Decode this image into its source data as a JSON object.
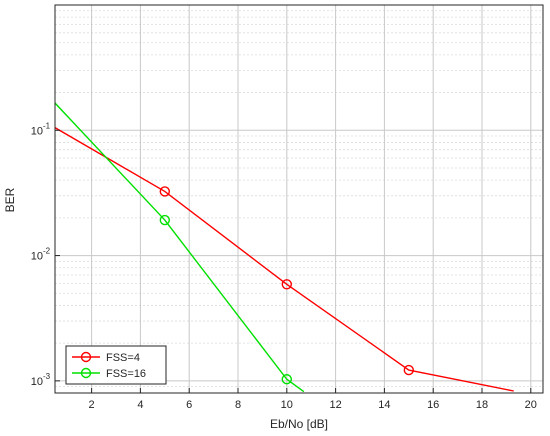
{
  "chart_data": {
    "type": "line",
    "title": "",
    "xlabel": "Eb/No [dB]",
    "ylabel": "BER",
    "xlim": [
      0.5,
      20.5
    ],
    "ylim": [
      0.0008,
      1
    ],
    "yscale": "log",
    "grid": true,
    "legend_position": "bottom-left",
    "x_ticks": [
      2,
      4,
      6,
      8,
      10,
      12,
      14,
      16,
      18,
      20
    ],
    "y_ticks": [
      {
        "value": 0.1,
        "base": "10",
        "exp": "-1"
      },
      {
        "value": 0.01,
        "base": "10",
        "exp": "-2"
      },
      {
        "value": 0.001,
        "base": "10",
        "exp": "-3"
      }
    ],
    "series": [
      {
        "name": "FSS=4",
        "color": "#ff0000",
        "x": [
          0.5,
          5,
          10,
          15,
          19.3
        ],
        "y": [
          0.105,
          0.0325,
          0.0059,
          0.00122,
          0.00083
        ],
        "markers": [
          5,
          10,
          15
        ]
      },
      {
        "name": "FSS=16",
        "color": "#00e000",
        "x": [
          0.5,
          5,
          10,
          10.7
        ],
        "y": [
          0.165,
          0.0192,
          0.00103,
          0.00082
        ],
        "markers": [
          5,
          10
        ]
      }
    ]
  }
}
